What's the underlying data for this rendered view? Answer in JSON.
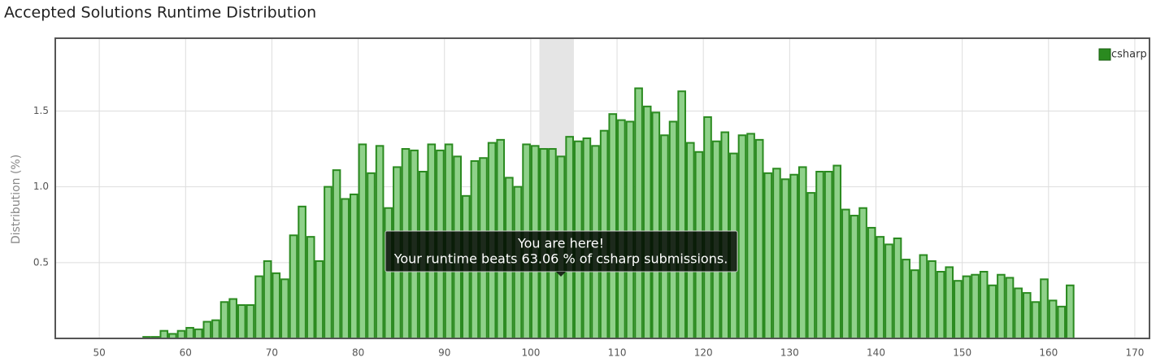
{
  "chart_data": {
    "type": "histogram",
    "title": "Accepted Solutions Runtime Distribution",
    "y_label": "Distribution (%)",
    "bins": [
      55,
      56,
      57,
      58,
      59,
      60,
      61,
      62,
      63,
      64,
      65,
      66,
      67,
      68,
      69,
      70,
      71,
      72,
      73,
      74,
      75,
      76,
      77,
      78,
      79,
      80,
      81,
      82,
      83,
      84,
      85,
      86,
      87,
      88,
      89,
      90,
      91,
      92,
      93,
      94,
      95,
      96,
      97,
      98,
      99,
      100,
      101,
      102,
      103,
      104,
      105,
      106,
      107,
      108,
      109,
      110,
      111,
      112,
      113,
      114,
      115,
      116,
      117,
      118,
      119,
      120,
      121,
      122,
      123,
      124,
      125,
      126,
      127,
      128,
      129,
      130,
      131,
      132,
      133,
      134,
      135,
      136,
      137,
      138,
      139,
      140,
      141,
      142,
      143,
      144,
      145,
      146,
      147,
      148,
      149,
      150,
      151,
      152,
      153,
      154,
      155,
      156,
      157,
      158,
      159,
      160,
      161,
      162,
      163
    ],
    "series": [
      {
        "name": "csharp",
        "color": "#2a8a1f",
        "fill": "#8fd18a",
        "values": [
          0.01,
          0.01,
          0.05,
          0.03,
          0.05,
          0.07,
          0.06,
          0.11,
          0.12,
          0.24,
          0.26,
          0.22,
          0.22,
          0.41,
          0.51,
          0.43,
          0.39,
          0.68,
          0.87,
          0.67,
          0.51,
          1.0,
          1.11,
          0.92,
          0.95,
          1.28,
          1.09,
          1.27,
          0.86,
          1.13,
          1.25,
          1.24,
          1.1,
          1.28,
          1.24,
          1.28,
          1.2,
          0.94,
          1.17,
          1.19,
          1.29,
          1.31,
          1.06,
          1.0,
          1.28,
          1.27,
          1.25,
          1.25,
          1.2,
          1.33,
          1.3,
          1.32,
          1.27,
          1.37,
          1.48,
          1.44,
          1.43,
          1.65,
          1.53,
          1.49,
          1.34,
          1.43,
          1.63,
          1.29,
          1.23,
          1.46,
          1.3,
          1.36,
          1.22,
          1.34,
          1.35,
          1.31,
          1.09,
          1.12,
          1.05,
          1.08,
          1.13,
          0.96,
          1.1,
          1.1,
          1.14,
          0.85,
          0.81,
          0.86,
          0.73,
          0.67,
          0.62,
          0.66,
          0.52,
          0.45,
          0.55,
          0.51,
          0.44,
          0.47,
          0.38,
          0.41,
          0.42,
          0.44,
          0.35,
          0.42,
          0.4,
          0.33,
          0.3,
          0.24,
          0.39,
          0.25,
          0.21,
          0.35
        ]
      }
    ],
    "highlight_range": [
      101,
      105
    ],
    "xlim": [
      44.9,
      171.7
    ],
    "xticks": [
      50,
      60,
      70,
      80,
      90,
      100,
      110,
      120,
      130,
      140,
      150,
      160,
      170
    ],
    "ylim": [
      0,
      1.98
    ],
    "yticks": [
      0.5,
      {
        "value": 1,
        "label": "1.0"
      },
      1.5
    ],
    "grid": true,
    "legend": "top-right",
    "annotations": [
      "You are here!",
      "Your runtime beats 63.06 % of csharp submissions."
    ]
  }
}
